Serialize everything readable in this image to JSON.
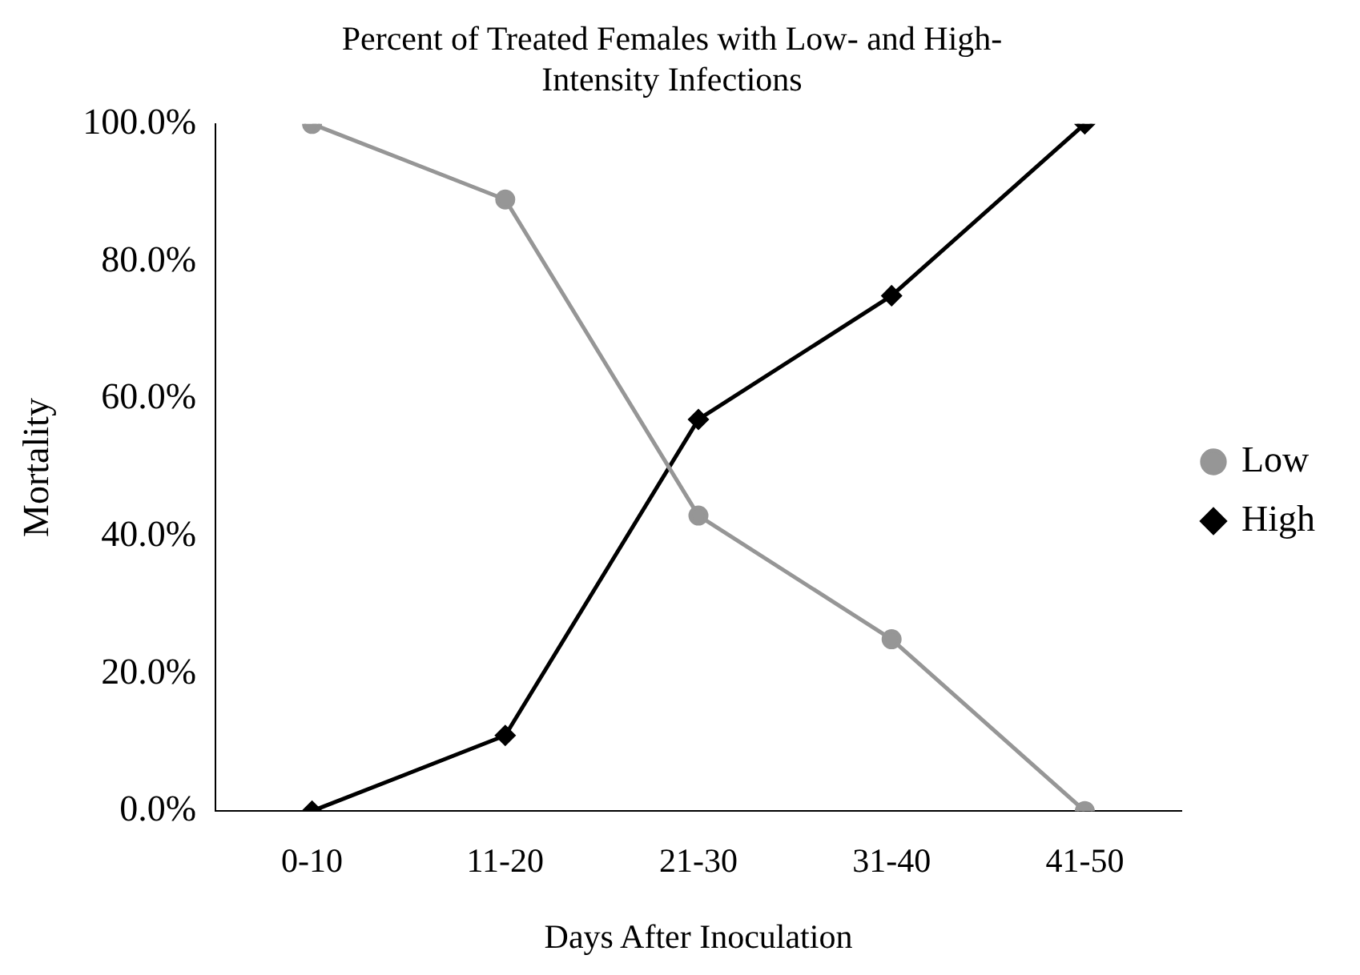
{
  "chart_data": {
    "type": "line",
    "title": "Percent of Treated Females with Low- and High-Intensity Infections",
    "xlabel": "Days After Inoculation",
    "ylabel": "Mortality",
    "categories": [
      "0-10",
      "11-20",
      "21-30",
      "31-40",
      "41-50"
    ],
    "series": [
      {
        "name": "Low",
        "color": "#969696",
        "values": [
          100,
          89,
          43,
          25,
          0
        ],
        "marker": "circle"
      },
      {
        "name": "High",
        "color": "#000000",
        "values": [
          0,
          11,
          57,
          75,
          100
        ],
        "marker": "diamond"
      }
    ],
    "ylim": [
      0,
      100
    ],
    "yticks": [
      {
        "value": 0,
        "label": "0.0%"
      },
      {
        "value": 20,
        "label": "20.0%"
      },
      {
        "value": 40,
        "label": "40.0%"
      },
      {
        "value": 60,
        "label": "60.0%"
      },
      {
        "value": 80,
        "label": "80.0%"
      },
      {
        "value": 100,
        "label": "100.0%"
      }
    ],
    "grid": false,
    "legend": "right"
  }
}
